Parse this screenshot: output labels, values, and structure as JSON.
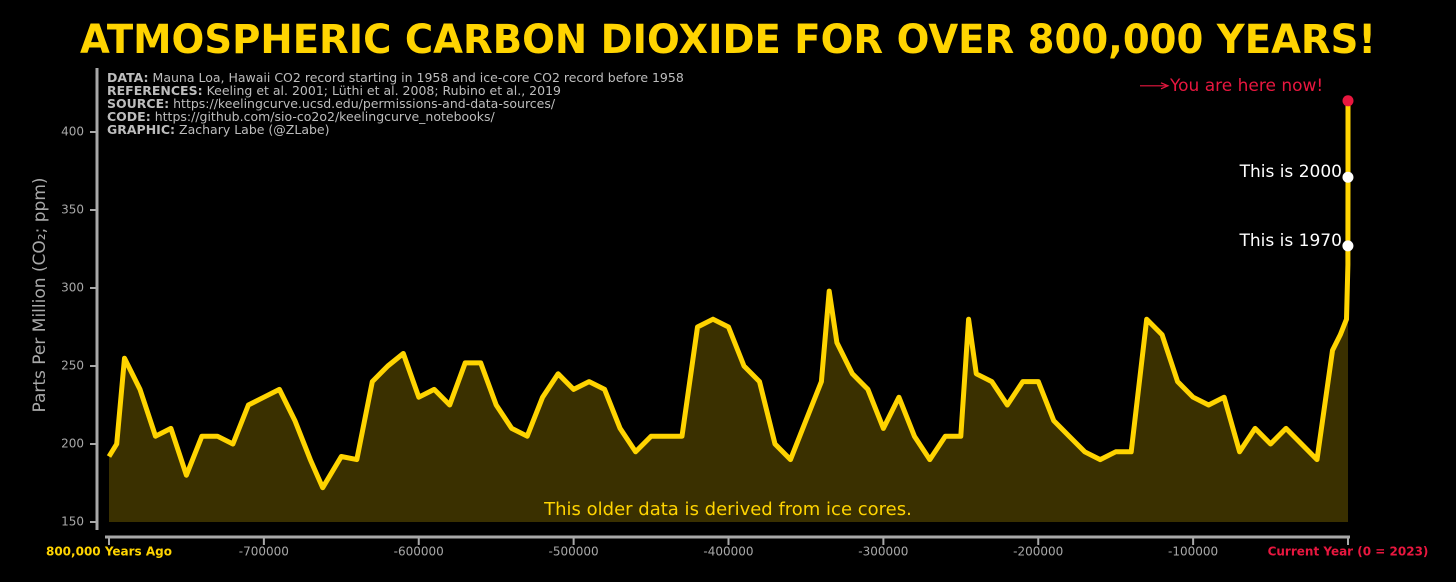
{
  "chart_data": {
    "type": "area",
    "title": "ATMOSPHERIC CARBON DIOXIDE FOR OVER 800,000 YEARS!",
    "y_label": "Parts Per Million (CO₂; ppm)",
    "notes": [
      {
        "key": "DATA:",
        "text": "Mauna Loa, Hawaii CO2 record starting in 1958 and ice-core CO2 record before 1958"
      },
      {
        "key": "REFERENCES:",
        "text": "Keeling et al. 2001; Lüthi et al. 2008; Rubino et al., 2019"
      },
      {
        "key": "SOURCE:",
        "text": "https://keelingcurve.ucsd.edu/permissions-and-data-sources/"
      },
      {
        "key": "CODE:",
        "text": "https://github.com/sio-co2o2/keelingcurve_notebooks/"
      },
      {
        "key": "GRAPHIC:",
        "text": "Zachary Labe (@ZLabe)"
      }
    ],
    "ice_core_note": "This older data is derived from ice cores.",
    "x": [
      -800000,
      -795000,
      -790000,
      -780000,
      -770000,
      -760000,
      -750000,
      -740000,
      -730000,
      -720000,
      -710000,
      -700000,
      -690000,
      -680000,
      -670000,
      -662000,
      -650000,
      -640000,
      -630000,
      -620000,
      -610000,
      -600000,
      -590000,
      -580000,
      -570000,
      -560000,
      -550000,
      -540000,
      -530000,
      -520000,
      -510000,
      -500000,
      -490000,
      -480000,
      -470000,
      -460000,
      -450000,
      -440000,
      -430000,
      -420000,
      -410000,
      -400000,
      -390000,
      -380000,
      -370000,
      -360000,
      -350000,
      -340000,
      -335000,
      -330000,
      -320000,
      -310000,
      -300000,
      -290000,
      -280000,
      -270000,
      -260000,
      -250000,
      -245000,
      -240000,
      -230000,
      -220000,
      -210000,
      -200000,
      -190000,
      -180000,
      -170000,
      -160000,
      -150000,
      -140000,
      -130000,
      -120000,
      -110000,
      -100000,
      -90000,
      -80000,
      -70000,
      -60000,
      -50000,
      -40000,
      -30000,
      -20000,
      -10000,
      -5000,
      -1000,
      -65,
      -53,
      -23,
      0
    ],
    "series": [
      {
        "name": "CO2",
        "color": "#ffd400",
        "fill": "#3a3000",
        "values": [
          192,
          200,
          255,
          235,
          205,
          210,
          180,
          205,
          205,
          200,
          225,
          230,
          235,
          215,
          190,
          172,
          192,
          190,
          240,
          250,
          258,
          230,
          235,
          225,
          252,
          252,
          225,
          210,
          205,
          230,
          245,
          235,
          240,
          235,
          210,
          195,
          205,
          205,
          205,
          275,
          280,
          275,
          250,
          240,
          200,
          190,
          215,
          240,
          298,
          265,
          245,
          235,
          210,
          230,
          205,
          190,
          205,
          205,
          280,
          245,
          240,
          225,
          240,
          240,
          215,
          205,
          195,
          190,
          195,
          195,
          280,
          270,
          240,
          230,
          225,
          230,
          195,
          210,
          200,
          210,
          200,
          190,
          260,
          270,
          280,
          315,
          327,
          371,
          420
        ]
      }
    ],
    "annotations": [
      {
        "label": "This is 1970",
        "x": -53,
        "y": 327,
        "color": "#ffffff"
      },
      {
        "label": "This is 2000",
        "x": -23,
        "y": 371,
        "color": "#ffffff"
      },
      {
        "label": "You are here now!",
        "x": 0,
        "y": 420,
        "color": "#e8173f"
      }
    ],
    "xlim": [
      -800000,
      0
    ],
    "ylim": [
      150,
      440
    ],
    "xticks": [
      {
        "value": -800000,
        "label": "800,000 Years Ago"
      },
      -700000,
      -600000,
      -500000,
      -400000,
      -300000,
      -200000,
      -100000,
      {
        "value": 0,
        "label": "Current Year (0 = 2023)"
      }
    ],
    "yticks": [
      150,
      200,
      250,
      300,
      350,
      400
    ]
  }
}
